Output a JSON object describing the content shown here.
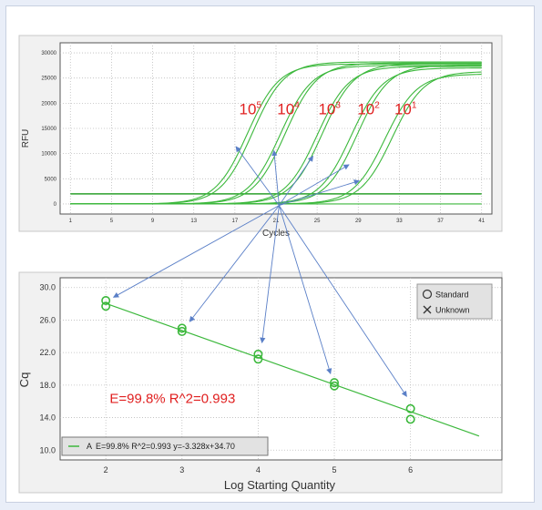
{
  "chart_data": [
    {
      "type": "line",
      "ylabel": "RFU",
      "xlabel": "Cycles",
      "xlim": [
        0,
        42
      ],
      "ylim": [
        -2000,
        32000
      ],
      "x_ticks": [
        1,
        5,
        9,
        13,
        17,
        21,
        25,
        29,
        33,
        37,
        41
      ],
      "y_ticks": [
        0,
        5000,
        10000,
        15000,
        20000,
        25000,
        30000
      ],
      "grid": true,
      "threshold": 2000,
      "dilution_labels": [
        {
          "base": "10",
          "exp": "5",
          "x": 18.5
        },
        {
          "base": "10",
          "exp": "4",
          "x": 22.2
        },
        {
          "base": "10",
          "exp": "3",
          "x": 26.2
        },
        {
          "base": "10",
          "exp": "2",
          "x": 30.0
        },
        {
          "base": "10",
          "exp": "1",
          "x": 33.6
        }
      ],
      "dilution_label_y": 17800,
      "series": [
        {
          "midpoint": 18.2,
          "plateau": 27800
        },
        {
          "midpoint": 18.7,
          "plateau": 28200
        },
        {
          "midpoint": 21.4,
          "plateau": 27500
        },
        {
          "midpoint": 21.9,
          "plateau": 28000
        },
        {
          "midpoint": 25.0,
          "plateau": 27300
        },
        {
          "midpoint": 25.5,
          "plateau": 27900
        },
        {
          "midpoint": 28.3,
          "plateau": 27000
        },
        {
          "midpoint": 28.9,
          "plateau": 27600
        },
        {
          "midpoint": 31.6,
          "plateau": 25800
        },
        {
          "midpoint": 32.3,
          "plateau": 26300
        }
      ]
    },
    {
      "type": "scatter",
      "ylabel": "Cq",
      "xlabel": "Log Starting Quantity",
      "xlim": [
        1.4,
        7.2
      ],
      "ylim": [
        8.8,
        31.2
      ],
      "x_ticks": [
        2,
        3,
        4,
        5,
        6
      ],
      "y_ticks": [
        10.0,
        14.0,
        18.0,
        22.0,
        26.0,
        30.0
      ],
      "y_tick_labels": [
        "10.0",
        "14.0",
        "18.0",
        "22.0",
        "26.0",
        "30.0"
      ],
      "grid": true,
      "points": [
        {
          "x": 2,
          "y": 28.4
        },
        {
          "x": 2,
          "y": 27.7
        },
        {
          "x": 3,
          "y": 25.0
        },
        {
          "x": 3,
          "y": 24.6
        },
        {
          "x": 4,
          "y": 21.8
        },
        {
          "x": 4,
          "y": 21.2
        },
        {
          "x": 5,
          "y": 18.3
        },
        {
          "x": 5,
          "y": 17.9
        },
        {
          "x": 6,
          "y": 15.1
        },
        {
          "x": 6,
          "y": 13.8
        }
      ],
      "fit": {
        "slope": -3.328,
        "intercept": 34.7,
        "x_range": [
          2,
          6.9
        ]
      },
      "annotation": "E=99.8%  R^2=0.993",
      "annotation_pos": [
        2.05,
        15.8
      ],
      "legend_items": [
        "Standard",
        "Unknown"
      ],
      "legend_position": "top-right",
      "fit_legend_prefix": "A",
      "fit_legend": "E=99.8% R^2=0.993 y=-3.328x+34.70",
      "fit_legend_position": "bottom-left"
    }
  ],
  "arrows": [
    {
      "to_top": [
        17.1,
        11400
      ],
      "to_bottom": [
        2.1,
        28.8
      ]
    },
    {
      "to_top": [
        20.8,
        10600
      ],
      "to_bottom": [
        3.1,
        25.8
      ]
    },
    {
      "to_top": [
        24.6,
        9500
      ],
      "to_bottom": [
        4.05,
        23.2
      ]
    },
    {
      "to_top": [
        28.1,
        7800
      ],
      "to_bottom": [
        4.95,
        19.4
      ]
    },
    {
      "to_top": [
        29.1,
        4600
      ],
      "to_bottom": [
        5.95,
        16.6
      ]
    }
  ],
  "arrow_origin": [
    21.3,
    -300
  ],
  "colors": {
    "curve": "#3cb83c",
    "threshold": "#2ca02c",
    "fit": "#6fd06f",
    "arrow": "#5a7fc7",
    "label": "#e02020"
  }
}
